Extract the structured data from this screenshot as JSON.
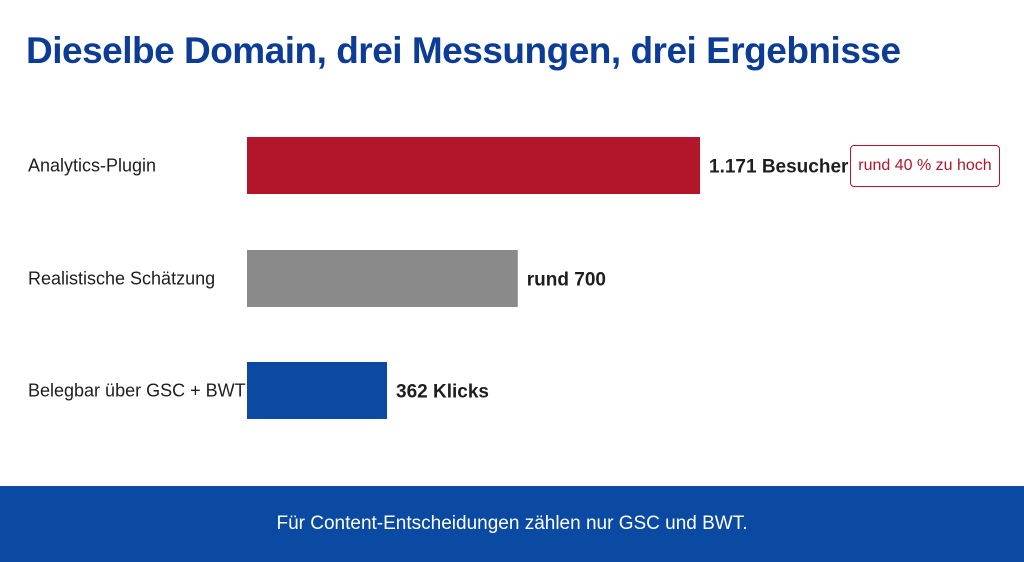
{
  "chart_data": {
    "type": "bar",
    "orientation": "horizontal",
    "title": "Dieselbe Domain, drei Messungen, drei Ergebnisse",
    "categories": [
      "Analytics-Plugin",
      "Realistische Schätzung",
      "Belegbar über GSC + BWT"
    ],
    "values": [
      1171,
      700,
      362
    ],
    "value_labels": [
      "1.171 Besucher",
      "rund 700",
      "362 Klicks"
    ],
    "colors": [
      "#b3152b",
      "#8a8a8a",
      "#0b4aa2"
    ],
    "annotations": [
      {
        "category": "Analytics-Plugin",
        "text": "rund 40 % zu hoch"
      }
    ],
    "xlim": [
      0,
      1171
    ],
    "grid": false,
    "legend": "none"
  },
  "footer": {
    "text": "Für Content-Entscheidungen zählen nur GSC und BWT."
  },
  "colors": {
    "title": "#0d3c96",
    "footer_background": "#0b4aa2",
    "annotation": "#b3152b"
  }
}
